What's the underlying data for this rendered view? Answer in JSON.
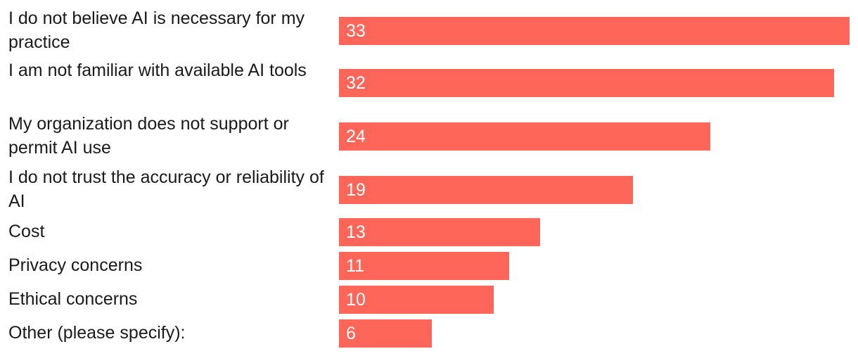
{
  "chart_data": {
    "type": "bar",
    "orientation": "horizontal",
    "categories": [
      "I do not believe AI is necessary for my practice",
      "I am not familiar with available AI tools",
      "My organization does not support or permit AI use",
      "I do not trust the accuracy or reliability of AI",
      "Cost",
      "Privacy concerns",
      "Ethical concerns",
      "Other (please specify):"
    ],
    "values": [
      33,
      32,
      24,
      19,
      13,
      11,
      10,
      6
    ],
    "title": "",
    "xlabel": "",
    "ylabel": "",
    "xlim": [
      0,
      33
    ],
    "grid": false,
    "data_labels": "inside-left",
    "colors": {
      "bar": "#ff665a",
      "value_label": "#ffffff",
      "category_label": "#1a1a1a"
    }
  }
}
